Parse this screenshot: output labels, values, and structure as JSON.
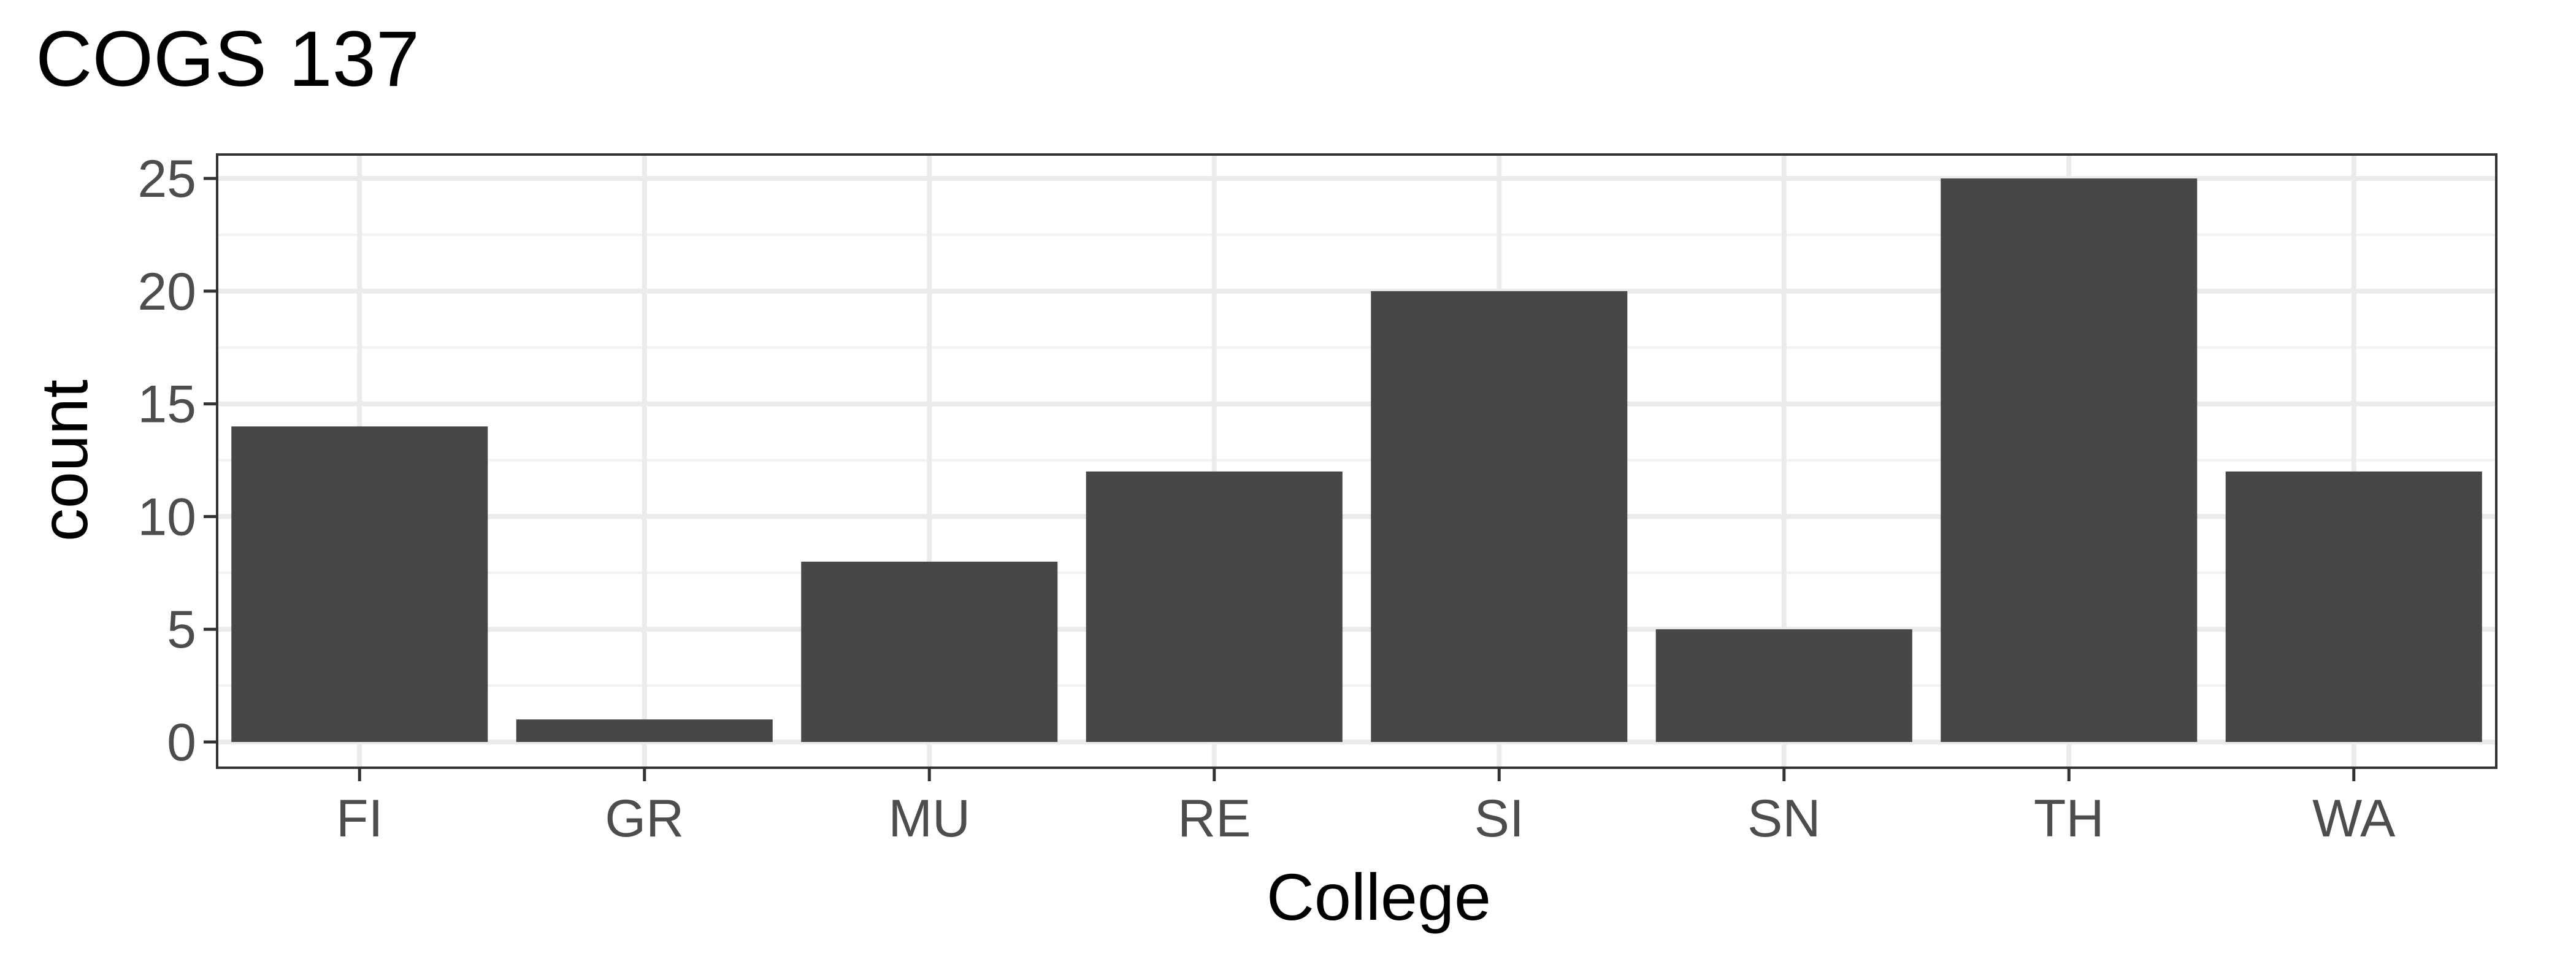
{
  "chart_data": {
    "type": "bar",
    "title": "COGS 137",
    "xlabel": "College",
    "ylabel": "count",
    "categories": [
      "FI",
      "GR",
      "MU",
      "RE",
      "SI",
      "SN",
      "TH",
      "WA"
    ],
    "values": [
      14,
      1,
      8,
      12,
      20,
      5,
      25,
      12
    ],
    "ylim": [
      0,
      26.2
    ],
    "yticks": [
      0,
      5,
      10,
      15,
      20,
      25
    ],
    "grid": true,
    "legend": "none"
  },
  "colors": {
    "bar": "#474747",
    "panel_border": "#333333",
    "grid_major": "#ebebeb",
    "grid_minor": "#f2f2f2",
    "tick_text": "#4d4d4d",
    "title_text": "#000000"
  }
}
